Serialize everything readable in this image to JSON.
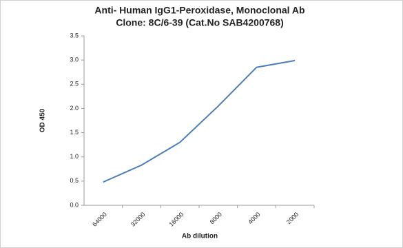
{
  "chart_data": {
    "type": "line",
    "title": "Anti- Human IgG1-Peroxidase, Monoclonal Ab",
    "subtitle": "Clone: 8C/6-39 (Cat.No SAB4200768)",
    "x_label": "Ab dilution",
    "y_label": "OD 450",
    "categories": [
      "64000",
      "32000",
      "16000",
      "8000",
      "4000",
      "2000"
    ],
    "values": [
      0.48,
      0.83,
      1.3,
      2.05,
      2.85,
      2.99
    ],
    "color": "#4a7ebb",
    "ylim": [
      0,
      3.5
    ],
    "yticks": [
      {
        "value": 0,
        "label": "0.0"
      },
      0.5,
      {
        "value": 1,
        "label": "1.0"
      },
      1.5,
      {
        "value": 2,
        "label": "2.0"
      },
      2.5,
      {
        "value": 3,
        "label": "3.0"
      },
      3.5
    ],
    "grid": false
  }
}
